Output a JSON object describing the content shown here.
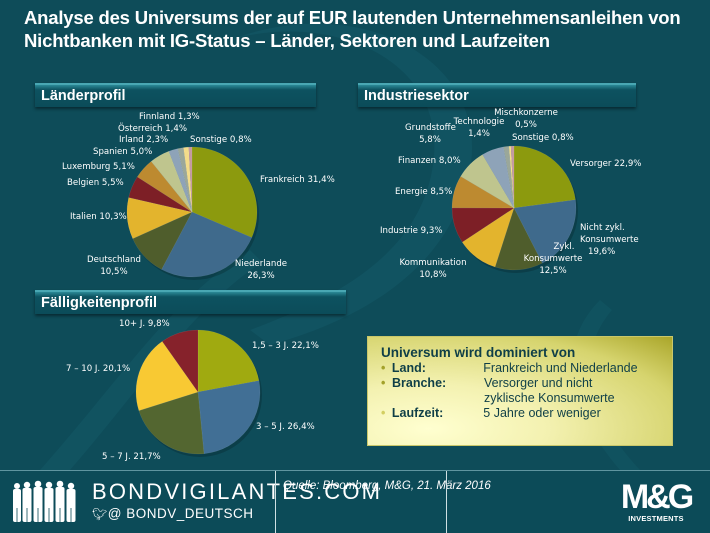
{
  "title": "Analyse des Universums der auf EUR lautenden Unternehmensanleihen von Nichtbanken mit IG-Status – Länder, Sektoren und Laufzeiten",
  "chart_data": [
    {
      "type": "pie",
      "title": "Länderprofil",
      "start": "12 o'clock, clockwise",
      "slices": [
        {
          "name": "Frankreich",
          "value": 31.4,
          "label": "Frankreich 31,4%",
          "color": "#8c9a0e"
        },
        {
          "name": "Niederlande",
          "value": 26.3,
          "label_lines": [
            "Niederlande",
            "26,3%"
          ],
          "color": "#3f6a8c"
        },
        {
          "name": "Deutschland",
          "value": 10.5,
          "label_lines": [
            "Deutschland",
            "10,5%"
          ],
          "color": "#4f5d2c"
        },
        {
          "name": "Italien",
          "value": 10.3,
          "label": "Italien 10,3%",
          "color": "#e3b42d"
        },
        {
          "name": "Belgien",
          "value": 5.5,
          "label": "Belgien 5,5%",
          "color": "#7d1f26"
        },
        {
          "name": "Luxemburg",
          "value": 5.1,
          "label": "Luxemburg 5,1%",
          "color": "#bd8a30"
        },
        {
          "name": "Spanien",
          "value": 5.0,
          "label": "Spanien 5,0%",
          "color": "#bfc58e"
        },
        {
          "name": "Irland",
          "value": 2.3,
          "label": "Irland 2,3%",
          "color": "#8ea3b8"
        },
        {
          "name": "Österreich",
          "value": 1.4,
          "label": "Österreich 1,4%",
          "color": "#9aa79a"
        },
        {
          "name": "Finnland",
          "value": 1.3,
          "label": "Finnland 1,3%",
          "color": "#f3dc8a"
        },
        {
          "name": "Sonstige",
          "value": 0.8,
          "label": "Sonstige 0,8%",
          "color": "#c59aa0"
        }
      ]
    },
    {
      "type": "pie",
      "title": "Industriesektor",
      "start": "12 o'clock, clockwise",
      "slices": [
        {
          "name": "Versorger",
          "value": 22.9,
          "label": "Versorger 22,9%",
          "color": "#8c9a0e"
        },
        {
          "name": "Nicht zykl. Konsumwerte",
          "value": 19.6,
          "label_lines": [
            "Nicht zykl.",
            "Konsumwerte",
            "19,6%"
          ],
          "color": "#3f6a8c"
        },
        {
          "name": "Zykl. Konsumwerte",
          "value": 12.5,
          "label_lines": [
            "Zykl.",
            "Konsumwerte",
            "12,5%"
          ],
          "color": "#4f5d2c"
        },
        {
          "name": "Kommunikation",
          "value": 10.8,
          "label_lines": [
            "Kommunikation",
            "10,8%"
          ],
          "color": "#e3b42d"
        },
        {
          "name": "Industrie",
          "value": 9.3,
          "label": "Industrie 9,3%",
          "color": "#7d1f26"
        },
        {
          "name": "Energie",
          "value": 8.5,
          "label": "Energie 8,5%",
          "color": "#bd8a30"
        },
        {
          "name": "Finanzen",
          "value": 8.0,
          "label": "Finanzen 8,0%",
          "color": "#bfc58e"
        },
        {
          "name": "Grundstoffe",
          "value": 5.8,
          "label_lines": [
            "Grundstoffe",
            "5,8%"
          ],
          "color": "#8ea3b8"
        },
        {
          "name": "Technologie",
          "value": 1.4,
          "label_lines": [
            "Technologie",
            "1,4%"
          ],
          "color": "#9aa79a"
        },
        {
          "name": "Mischkonzerne",
          "value": 0.5,
          "label_lines": [
            "Mischkonzerne",
            "0,5%"
          ],
          "color": "#f3dc8a"
        },
        {
          "name": "Sonstige",
          "value": 0.8,
          "label": "Sonstige 0,8%",
          "color": "#c59aa0"
        }
      ]
    },
    {
      "type": "pie",
      "title": "Fälligkeitenprofil",
      "start": "12 o'clock, clockwise",
      "slices": [
        {
          "name": "1,5 – 3 J.",
          "value": 22.1,
          "label": "1,5 – 3 J. 22,1%",
          "color": "#a0aa10"
        },
        {
          "name": "3 – 5 J.",
          "value": 26.4,
          "label": "3 – 5 J. 26,4%",
          "color": "#416f95"
        },
        {
          "name": "5 – 7 J.",
          "value": 21.7,
          "label": "5 – 7 J. 21,7%",
          "color": "#536630"
        },
        {
          "name": "7 – 10 J.",
          "value": 20.1,
          "label": "7 – 10 J. 20,1%",
          "color": "#f8c933"
        },
        {
          "name": "10+ J.",
          "value": 9.8,
          "label": "10+ J. 9,8%",
          "color": "#86222b"
        }
      ]
    }
  ],
  "summary": {
    "heading": "Universum wird dominiert von",
    "rows": [
      {
        "key": "Land:",
        "value": "Frankreich und Niederlande"
      },
      {
        "key": "Branche:",
        "value": "Versorger und nicht zyklische Konsumwerte"
      },
      {
        "key": "Laufzeit:",
        "value": "5 Jahre oder weniger"
      }
    ],
    "bullet": "•"
  },
  "footer": {
    "brand": "BONDVIGILANTES.COM",
    "handle": "@ BONDV_DEUTSCH",
    "twitter_icon": "twitter-bird-icon",
    "source": "Quelle: Bloomberg, M&G, 21. März 2016",
    "logo_text": "M&G",
    "logo_sub": "INVESTMENTS"
  }
}
